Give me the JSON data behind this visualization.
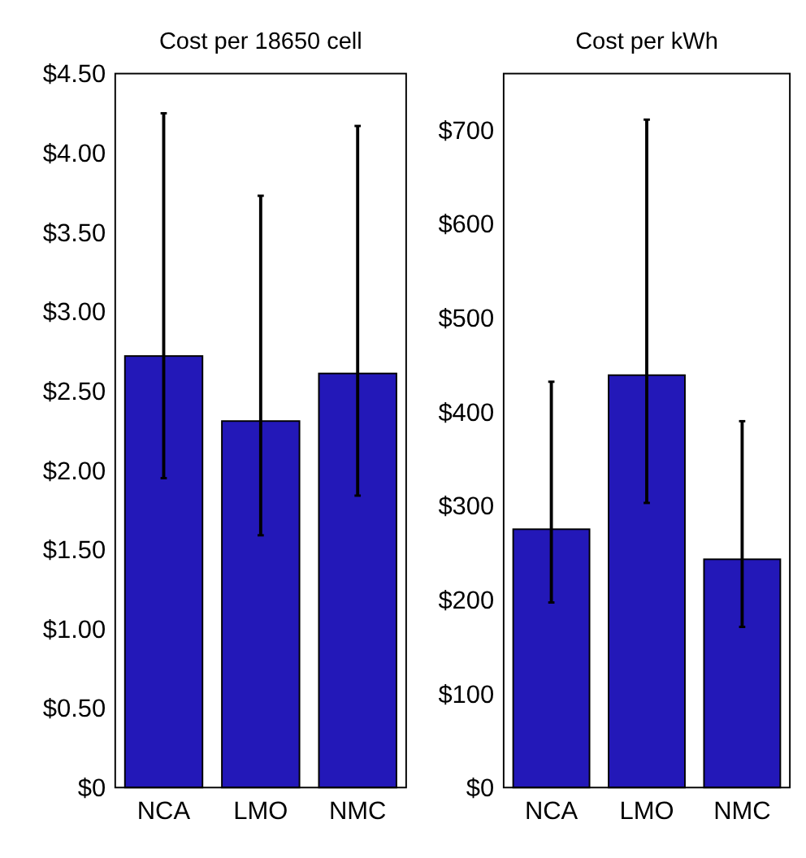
{
  "chart_data": [
    {
      "type": "bar",
      "title": "Cost per 18650 cell",
      "categories": [
        "NCA",
        "LMO",
        "NMC"
      ],
      "values": [
        2.72,
        2.31,
        2.61
      ],
      "errors": [
        [
          1.95,
          4.25
        ],
        [
          1.59,
          3.73
        ],
        [
          1.84,
          4.17
        ]
      ],
      "color": "#2318b8",
      "ylim": [
        0,
        4.5
      ],
      "yticks": [
        {
          "value": 0,
          "label": "$0"
        },
        {
          "value": 0.5,
          "label": "$0.50"
        },
        {
          "value": 1,
          "label": "$1.00"
        },
        {
          "value": 1.5,
          "label": "$1.50"
        },
        {
          "value": 2,
          "label": "$2.00"
        },
        {
          "value": 2.5,
          "label": "$2.50"
        },
        {
          "value": 3,
          "label": "$3.00"
        },
        {
          "value": 3.5,
          "label": "$3.50"
        },
        {
          "value": 4,
          "label": "$4.00"
        },
        {
          "value": 4.5,
          "label": "$4.50"
        }
      ],
      "grid": false
    },
    {
      "type": "bar",
      "title": "Cost per kWh",
      "categories": [
        "NCA",
        "LMO",
        "NMC"
      ],
      "values": [
        275,
        439,
        243
      ],
      "errors": [
        [
          197,
          432
        ],
        [
          303,
          711
        ],
        [
          171,
          390
        ]
      ],
      "color": "#2318b8",
      "ylim": [
        0,
        760
      ],
      "yticks": [
        {
          "value": 0,
          "label": "$0"
        },
        {
          "value": 100,
          "label": "$100"
        },
        {
          "value": 200,
          "label": "$200"
        },
        {
          "value": 300,
          "label": "$300"
        },
        {
          "value": 400,
          "label": "$400"
        },
        {
          "value": 500,
          "label": "$500"
        },
        {
          "value": 600,
          "label": "$600"
        },
        {
          "value": 700,
          "label": "$700"
        }
      ],
      "grid": false
    }
  ]
}
